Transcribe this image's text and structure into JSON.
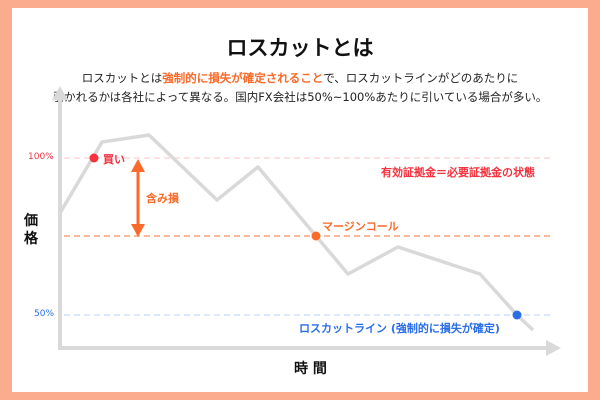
{
  "title": "ロスカットとは",
  "description": {
    "line1_before": "ロスカットとは",
    "line1_highlight": "強制的に損失が確定されること",
    "line1_after": "で、ロスカットラインがどのあたりに",
    "line2": "引かれるかは各社によって異なる。国内FX会社は50%~100%あたりに引いている場合が多い。"
  },
  "axes": {
    "y_label_1": "価",
    "y_label_2": "格",
    "x_label": "時 間"
  },
  "levels": {
    "pct_100": "100%",
    "pct_50": "50%",
    "buy": "買い",
    "unrealized_loss": "含み損",
    "equal_state": "有効証拠金＝必要証拠金の状態",
    "margin_call": "マージンコール",
    "losscut_line": "ロスカットライン (強制的に損失が確定)"
  },
  "colors": {
    "border": "#fbab8e",
    "red": "#f5333f",
    "orange": "#fa6a2a",
    "blue": "#2a6de8",
    "line": "#d9d9d9"
  }
}
